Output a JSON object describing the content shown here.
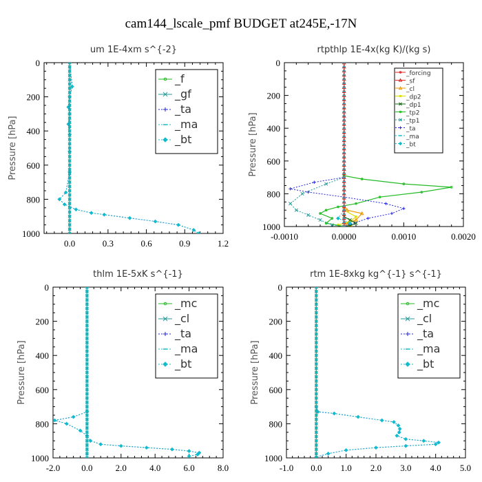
{
  "colors": {
    "green": "#22bb22",
    "teal": "#229999",
    "blue": "#2222dd",
    "cyan": "#11bbcc",
    "red": "#dd2222",
    "orange": "#ee9900",
    "yellow": "#dddd00",
    "darkgreen": "#116611",
    "purple": "#9933cc"
  },
  "chart_data": {
    "type": "line",
    "title": "cam144_lscale_pmf  BUDGET at245E,-17N",
    "panels": [
      {
        "title": "um   1E-4xm s^{-2}",
        "ylabel": "Pressure [hPa]",
        "xlim": [
          -0.2,
          1.2
        ],
        "ylim": [
          1000,
          0
        ],
        "xticks": [
          "0.0",
          "0.3",
          "0.6",
          "0.9",
          "1.2"
        ],
        "xtick_values": [
          0.0,
          0.3,
          0.6,
          0.9,
          1.2
        ],
        "yticks": [
          "0",
          "200",
          "400",
          "600",
          "800",
          "1000"
        ],
        "ytick_values": [
          0,
          200,
          400,
          600,
          800,
          1000
        ],
        "legend_size": "large",
        "series": [
          {
            "name": "_f",
            "color": "green",
            "marker": "circle",
            "dash": false,
            "x": [
              0,
              0
            ],
            "y": [
              0,
              1000
            ]
          },
          {
            "name": "_gf",
            "color": "teal",
            "marker": "x",
            "dash": false,
            "x": [
              0,
              0
            ],
            "y": [
              0,
              1000
            ]
          },
          {
            "name": "_ta",
            "color": "blue",
            "marker": "plus",
            "dash": true,
            "x": [
              0,
              0.02,
              0.0,
              -0.01,
              0.0,
              -0.01,
              0.0,
              0.0,
              0.0,
              -0.03,
              -0.08,
              -0.04,
              0.05,
              0.17,
              0.27,
              0.47,
              0.67,
              0.85,
              0.97,
              1.01
            ],
            "y": [
              0,
              140,
              200,
              260,
              300,
              360,
              420,
              520,
              640,
              760,
              800,
              830,
              860,
              880,
              890,
              910,
              930,
              950,
              980,
              1000
            ]
          },
          {
            "name": "_ma",
            "color": "cyan",
            "marker": "dash",
            "dash": true,
            "x": [
              0,
              0
            ],
            "y": [
              0,
              1000
            ]
          },
          {
            "name": "_bt",
            "color": "cyan",
            "marker": "diamond",
            "dash": true,
            "x": [
              0,
              0.02,
              0.0,
              -0.01,
              0.0,
              -0.01,
              0.0,
              0.0,
              0.0,
              -0.03,
              -0.08,
              -0.04,
              0.05,
              0.17,
              0.27,
              0.47,
              0.67,
              0.85,
              0.97,
              1.01
            ],
            "y": [
              0,
              140,
              200,
              260,
              300,
              360,
              420,
              520,
              640,
              760,
              800,
              830,
              860,
              880,
              890,
              910,
              930,
              950,
              980,
              1000
            ]
          }
        ]
      },
      {
        "title": "rtpthlp   1E-4x(kg K)/(kg s)",
        "ylabel": "Pressure [hPa]",
        "xlim": [
          -0.001,
          0.002
        ],
        "ylim": [
          1000,
          0
        ],
        "xticks": [
          "-0.0010",
          "0.0000",
          "0.0010",
          "0.0020"
        ],
        "xtick_values": [
          -0.001,
          0.0,
          0.001,
          0.002
        ],
        "yticks": [
          "0",
          "200",
          "400",
          "600",
          "800",
          "1000"
        ],
        "ytick_values": [
          0,
          200,
          400,
          600,
          800,
          1000
        ],
        "legend_size": "small",
        "series": [
          {
            "name": "_forcing",
            "color": "red",
            "marker": "circle",
            "dash": false,
            "x": [
              0,
              0
            ],
            "y": [
              0,
              1000
            ]
          },
          {
            "name": "_sf",
            "color": "red",
            "marker": "triangle",
            "dash": false,
            "x": [
              0,
              0
            ],
            "y": [
              0,
              1000
            ]
          },
          {
            "name": "_cl",
            "color": "orange",
            "marker": "triangle",
            "dash": false,
            "x": [
              0,
              5e-05,
              0.0003,
              0.0002,
              5e-05,
              0.0001,
              0.0
            ],
            "y": [
              880,
              900,
              920,
              960,
              980,
              990,
              1000
            ]
          },
          {
            "name": "_dp2",
            "color": "yellow",
            "marker": "circle",
            "dash": false,
            "x": [
              0,
              0.0002,
              0.0001,
              -0.0001,
              0.0
            ],
            "y": [
              900,
              940,
              970,
              990,
              1000
            ]
          },
          {
            "name": "_dp1",
            "color": "darkgreen",
            "marker": "x",
            "dash": false,
            "x": [
              0,
              0.0001,
              0.0002,
              0.0001,
              0.0
            ],
            "y": [
              940,
              960,
              980,
              995,
              1000
            ]
          },
          {
            "name": "_tp2",
            "color": "green",
            "marker": "circle",
            "dash": false,
            "x": [
              0,
              0.0,
              0.0003,
              0.001,
              0.0018,
              0.0013,
              0.0006,
              0.0002,
              -0.0001,
              -0.0003,
              -0.0004,
              -0.0002,
              -0.0003,
              0.0
            ],
            "y": [
              0,
              690,
              710,
              740,
              760,
              790,
              820,
              860,
              880,
              900,
              920,
              950,
              980,
              1000
            ]
          },
          {
            "name": "_tp1",
            "color": "teal",
            "marker": "x",
            "dash": true,
            "x": [
              0,
              0.0,
              -0.0003,
              -0.0007,
              -0.0009,
              -0.0008,
              -0.0006,
              -0.0004,
              -0.0002,
              0.0
            ],
            "y": [
              0,
              700,
              740,
              800,
              860,
              900,
              930,
              960,
              990,
              1000
            ]
          },
          {
            "name": "_ta",
            "color": "blue",
            "marker": "plus",
            "dash": true,
            "x": [
              0,
              0.0,
              -0.0005,
              -0.0009,
              -0.0006,
              0.0,
              0.0007,
              0.001,
              0.0008,
              0.0004,
              0.0
            ],
            "y": [
              0,
              700,
              730,
              770,
              790,
              820,
              860,
              890,
              920,
              950,
              1000
            ]
          },
          {
            "name": "_ma",
            "color": "cyan",
            "marker": "dash",
            "dash": true,
            "x": [
              0,
              0
            ],
            "y": [
              0,
              1000
            ]
          },
          {
            "name": "_bt",
            "color": "cyan",
            "marker": "diamond",
            "dash": true,
            "x": [
              0,
              0.0,
              -0.0001,
              0.0001,
              0.0
            ],
            "y": [
              0,
              900,
              950,
              980,
              1000
            ]
          }
        ]
      },
      {
        "title": "thlm   1E-5xK s^{-1}",
        "ylabel": "Pressure [hPa]",
        "xlim": [
          -2.0,
          8.0
        ],
        "ylim": [
          1000,
          0
        ],
        "xticks": [
          "-2.0",
          "0.0",
          "2.0",
          "4.0",
          "6.0",
          "8.0"
        ],
        "xtick_values": [
          -2.0,
          0.0,
          2.0,
          4.0,
          6.0,
          8.0
        ],
        "yticks": [
          "0",
          "200",
          "400",
          "600",
          "800",
          "1000"
        ],
        "ytick_values": [
          0,
          200,
          400,
          600,
          800,
          1000
        ],
        "legend_size": "large",
        "series": [
          {
            "name": "_mc",
            "color": "green",
            "marker": "circle",
            "dash": false,
            "x": [
              0,
              0
            ],
            "y": [
              0,
              1000
            ]
          },
          {
            "name": "_cl",
            "color": "teal",
            "marker": "x",
            "dash": false,
            "x": [
              0,
              0
            ],
            "y": [
              0,
              1000
            ]
          },
          {
            "name": "_ta",
            "color": "blue",
            "marker": "plus",
            "dash": true,
            "x": [
              0,
              0.0,
              -0.8,
              -1.9,
              -1.2,
              -0.4,
              0.0,
              0.2,
              0.8,
              2.0,
              3.5,
              5.0,
              6.0,
              6.6,
              6.5,
              6.0
            ],
            "y": [
              0,
              730,
              760,
              780,
              800,
              840,
              870,
              900,
              920,
              930,
              940,
              950,
              960,
              970,
              980,
              990
            ]
          },
          {
            "name": "_ma",
            "color": "cyan",
            "marker": "dash",
            "dash": true,
            "x": [
              0,
              0
            ],
            "y": [
              0,
              1000
            ]
          },
          {
            "name": "_bt",
            "color": "cyan",
            "marker": "diamond",
            "dash": true,
            "x": [
              0,
              0.0,
              -0.8,
              -1.9,
              -1.2,
              -0.4,
              0.0,
              0.2,
              0.8,
              2.0,
              3.5,
              5.0,
              6.0,
              6.6,
              6.5,
              6.0
            ],
            "y": [
              0,
              730,
              760,
              780,
              800,
              840,
              870,
              900,
              920,
              930,
              940,
              950,
              960,
              970,
              980,
              990
            ]
          }
        ]
      },
      {
        "title": "rtm   1E-8xkg kg^{-1} s^{-1}",
        "ylabel": "Pressure [hPa]",
        "xlim": [
          -1.0,
          5.0
        ],
        "ylim": [
          1000,
          0
        ],
        "xticks": [
          "-1.0",
          "0.0",
          "1.0",
          "2.0",
          "3.0",
          "4.0",
          "5.0"
        ],
        "xtick_values": [
          -1.0,
          0.0,
          1.0,
          2.0,
          3.0,
          4.0,
          5.0
        ],
        "yticks": [
          "0",
          "200",
          "400",
          "600",
          "800",
          "1000"
        ],
        "ytick_values": [
          0,
          200,
          400,
          600,
          800,
          1000
        ],
        "legend_size": "large",
        "series": [
          {
            "name": "_mc",
            "color": "green",
            "marker": "circle",
            "dash": false,
            "x": [
              0,
              0
            ],
            "y": [
              0,
              1000
            ]
          },
          {
            "name": "_cl",
            "color": "teal",
            "marker": "x",
            "dash": false,
            "x": [
              0,
              0
            ],
            "y": [
              0,
              1000
            ]
          },
          {
            "name": "_ta",
            "color": "blue",
            "marker": "plus",
            "dash": true,
            "x": [
              0,
              0.0,
              0.05,
              0.6,
              1.4,
              2.2,
              2.6,
              2.75,
              2.8,
              2.78,
              2.7,
              3.0,
              3.6,
              4.1,
              4.0,
              3.0,
              2.0,
              1.0,
              0.4,
              0.0
            ],
            "y": [
              0,
              700,
              730,
              740,
              760,
              780,
              790,
              810,
              830,
              850,
              870,
              890,
              900,
              910,
              920,
              930,
              940,
              955,
              975,
              995
            ]
          },
          {
            "name": "_ma",
            "color": "cyan",
            "marker": "dash",
            "dash": true,
            "x": [
              0,
              0
            ],
            "y": [
              0,
              1000
            ]
          },
          {
            "name": "_bt",
            "color": "cyan",
            "marker": "diamond",
            "dash": true,
            "x": [
              0,
              0.0,
              0.05,
              0.6,
              1.4,
              2.2,
              2.6,
              2.75,
              2.8,
              2.78,
              2.7,
              3.0,
              3.6,
              4.1,
              4.0,
              3.0,
              2.0,
              1.0,
              0.4,
              0.0
            ],
            "y": [
              0,
              700,
              730,
              740,
              760,
              780,
              790,
              810,
              830,
              850,
              870,
              890,
              900,
              910,
              920,
              930,
              940,
              955,
              975,
              995
            ]
          }
        ]
      }
    ]
  }
}
